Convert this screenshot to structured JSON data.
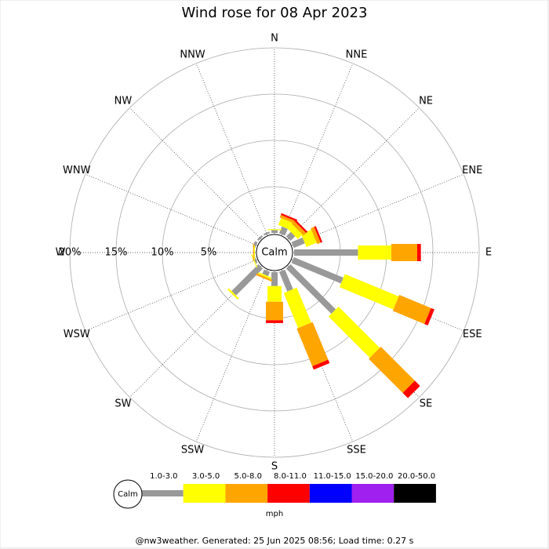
{
  "chart_data": {
    "type": "windrose",
    "title": "Wind rose for 08 Apr 2023",
    "directions": [
      "N",
      "NNE",
      "NE",
      "ENE",
      "E",
      "ESE",
      "SE",
      "SSE",
      "S",
      "SSW",
      "SW",
      "WSW",
      "W",
      "WNW",
      "NW",
      "NNW"
    ],
    "series": [
      {
        "name": "1.0-3.0",
        "color": "#999999",
        "values": [
          0.3,
          0.8,
          0.7,
          1.3,
          6.9,
          5.8,
          6.9,
          2.3,
          1.5,
          0.5,
          4.1,
          0.2,
          0,
          0.3,
          0.2,
          0.2
        ]
      },
      {
        "name": "3.0-5.0",
        "color": "#ffff00",
        "values": [
          0.1,
          0.8,
          0.7,
          1.2,
          3.6,
          6.3,
          6.3,
          4.1,
          1.7,
          0.2,
          0.2,
          0.1,
          0.1,
          0,
          0,
          0
        ]
      },
      {
        "name": "5.0-8.0",
        "color": "#ffa500",
        "values": [
          0,
          0.3,
          0.4,
          0.4,
          2.8,
          3.7,
          5.2,
          4.4,
          2.0,
          0.2,
          0,
          0,
          0.1,
          0,
          0,
          0
        ]
      },
      {
        "name": "8.0-11.0",
        "color": "#ff0000",
        "values": [
          0,
          0.2,
          0.2,
          0.2,
          0.4,
          0.4,
          0.8,
          0.4,
          0.3,
          0,
          0,
          0,
          0,
          0,
          0,
          0
        ]
      },
      {
        "name": "11.0-15.0",
        "color": "#0000ff",
        "values": [
          0,
          0,
          0,
          0,
          0,
          0,
          0,
          0,
          0,
          0,
          0,
          0,
          0,
          0,
          0,
          0
        ]
      },
      {
        "name": "15.0-20.0",
        "color": "#a020f0",
        "values": [
          0,
          0,
          0,
          0,
          0,
          0,
          0,
          0,
          0,
          0,
          0,
          0,
          0,
          0,
          0,
          0
        ]
      },
      {
        "name": "20.0-50.0",
        "color": "#000000",
        "values": [
          0,
          0,
          0,
          0,
          0,
          0,
          0,
          0,
          0,
          0,
          0,
          0,
          0,
          0,
          0,
          0
        ]
      }
    ],
    "rlim": [
      0,
      20
    ],
    "rticks": [
      {
        "value": 5,
        "label": "5%"
      },
      {
        "value": 10,
        "label": "10%"
      },
      {
        "value": 15,
        "label": "15%"
      },
      {
        "value": 20,
        "label": "20%"
      }
    ],
    "calm_label": "Calm",
    "legend_unit": "mph"
  },
  "footer": "@nw3weather. Generated: 25 Jun 2025 08:56; Load time: 0.27 s"
}
